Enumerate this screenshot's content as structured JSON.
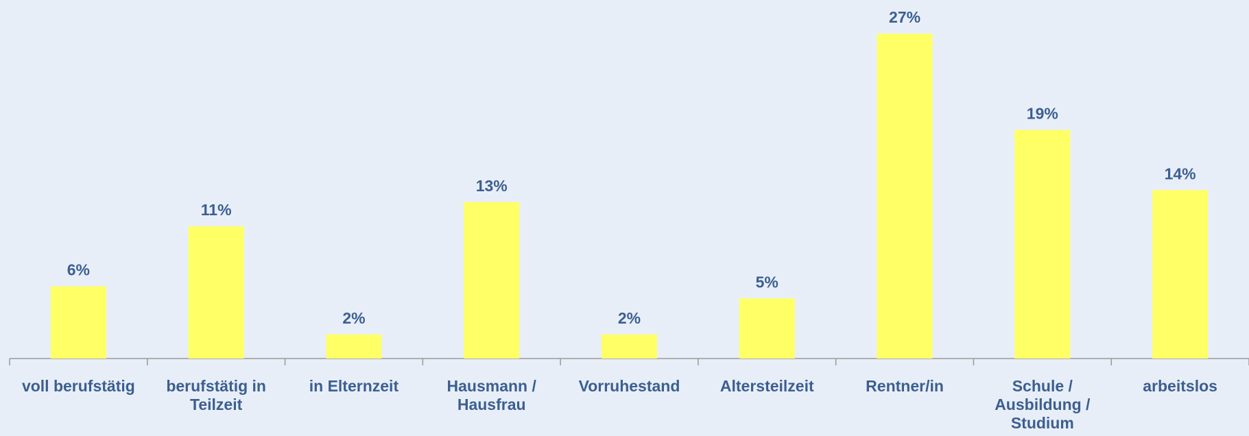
{
  "chart_data": {
    "type": "bar",
    "categories": [
      "voll berufstätig",
      "berufstätig in Teilzeit",
      "in Elternzeit",
      "Hausmann / Hausfrau",
      "Vorruhestand",
      "Altersteilzeit",
      "Rentner/in",
      "Schule / Ausbildung / Studium",
      "arbeitslos"
    ],
    "values": [
      6,
      11,
      2,
      13,
      2,
      5,
      27,
      19,
      14
    ],
    "value_labels": [
      "6%",
      "11%",
      "2%",
      "13%",
      "2%",
      "5%",
      "27%",
      "19%",
      "14%"
    ],
    "color": "#ffff66"
  }
}
